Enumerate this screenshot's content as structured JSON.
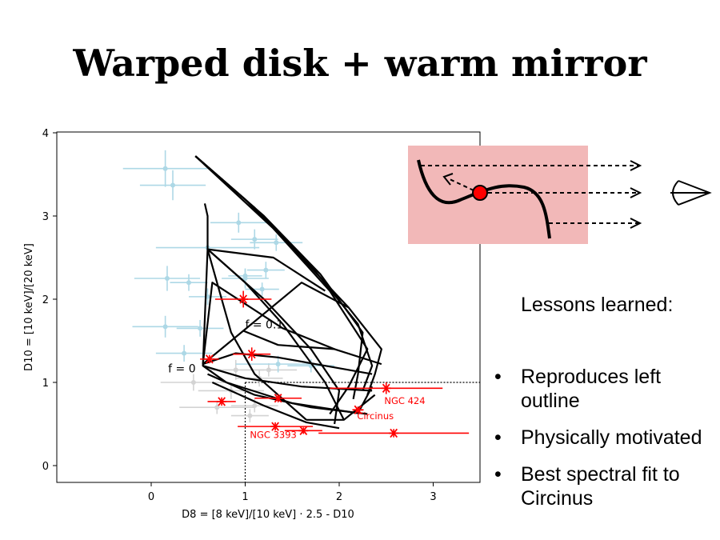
{
  "slide": {
    "title": "Warped disk + warm mirror",
    "lessons_heading": "Lessons learned:",
    "bullets": [
      "Reproduces left outline",
      "Physically motivated",
      "Best spectral fit to Circinus"
    ]
  },
  "colors": {
    "model_grid": "#000000",
    "sources": "#ff0000",
    "background_sample": "#add8e6",
    "grey_sample": "#d3d3d3",
    "inset_box": "#f2b8b8",
    "inset_dot": "#ff0000"
  },
  "chart_data": {
    "type": "scatter",
    "xlabel": "D8 = [8 keV]/[10 keV] · 2.5 - D10",
    "ylabel": "D10 = [10 keV]/[20 keV]",
    "xlim": [
      -1.0,
      3.5
    ],
    "ylim": [
      -0.2,
      4.0
    ],
    "xticks": [
      0,
      1,
      2,
      3
    ],
    "yticks": [
      0,
      1,
      2,
      3,
      4
    ],
    "reference_lines": {
      "x": 1.0,
      "y": 1.0,
      "style": "dotted"
    },
    "annotations": [
      {
        "text": "f = 0.1",
        "x": 1.0,
        "y": 1.65
      },
      {
        "text": "f = 0",
        "x": 0.18,
        "y": 1.12
      }
    ],
    "model_grid": {
      "lines": [
        [
          [
            0.57,
            3.15
          ],
          [
            0.6,
            3.0
          ],
          [
            0.6,
            2.6
          ],
          [
            0.55,
            1.2
          ],
          [
            0.8,
            1.0
          ],
          [
            1.5,
            0.75
          ],
          [
            2.2,
            0.63
          ],
          [
            2.35,
            0.95
          ]
        ],
        [
          [
            0.47,
            3.72
          ],
          [
            1.0,
            3.2
          ],
          [
            1.6,
            2.5
          ],
          [
            2.1,
            1.9
          ],
          [
            2.45,
            1.4
          ],
          [
            2.38,
            1.1
          ],
          [
            2.3,
            0.85
          ]
        ],
        [
          [
            0.47,
            3.72
          ],
          [
            1.1,
            3.1
          ],
          [
            1.7,
            2.4
          ],
          [
            2.2,
            1.7
          ],
          [
            2.35,
            1.2
          ],
          [
            2.25,
            0.9
          ]
        ],
        [
          [
            0.47,
            3.72
          ],
          [
            1.2,
            3.0
          ],
          [
            1.8,
            2.3
          ],
          [
            2.25,
            1.6
          ],
          [
            2.2,
            1.1
          ],
          [
            2.15,
            0.8
          ]
        ],
        [
          [
            0.47,
            3.72
          ],
          [
            1.3,
            2.85
          ],
          [
            1.9,
            2.1
          ],
          [
            2.3,
            1.4
          ],
          [
            2.1,
            0.95
          ],
          [
            1.9,
            0.62
          ]
        ],
        [
          [
            0.6,
            2.6
          ],
          [
            1.0,
            2.2
          ],
          [
            1.4,
            1.7
          ],
          [
            1.85,
            1.0
          ],
          [
            2.05,
            0.55
          ]
        ],
        [
          [
            0.6,
            2.6
          ],
          [
            0.85,
            1.6
          ],
          [
            1.1,
            1.1
          ],
          [
            1.65,
            0.55
          ]
        ],
        [
          [
            0.6,
            2.6
          ],
          [
            1.2,
            2.0
          ],
          [
            1.7,
            1.4
          ],
          [
            2.0,
            0.9
          ],
          [
            1.95,
            0.5
          ]
        ],
        [
          [
            0.55,
            1.22
          ],
          [
            0.9,
            1.35
          ],
          [
            1.35,
            1.3
          ],
          [
            1.85,
            1.2
          ],
          [
            2.35,
            1.1
          ]
        ],
        [
          [
            0.55,
            1.2
          ],
          [
            1.0,
            1.05
          ],
          [
            1.6,
            0.95
          ],
          [
            2.35,
            0.9
          ]
        ],
        [
          [
            0.6,
            1.1
          ],
          [
            1.1,
            0.85
          ],
          [
            1.7,
            0.7
          ],
          [
            2.3,
            0.62
          ]
        ],
        [
          [
            0.65,
            1.0
          ],
          [
            1.2,
            0.72
          ],
          [
            1.65,
            0.52
          ],
          [
            2.0,
            0.45
          ]
        ],
        [
          [
            0.55,
            1.22
          ],
          [
            0.98,
            1.62
          ],
          [
            1.35,
            1.45
          ],
          [
            1.95,
            1.4
          ],
          [
            2.45,
            1.22
          ]
        ],
        [
          [
            0.55,
            1.22
          ],
          [
            0.65,
            2.2
          ],
          [
            1.4,
            1.65
          ],
          [
            1.95,
            1.4
          ]
        ],
        [
          [
            0.98,
            1.62
          ],
          [
            1.6,
            2.2
          ],
          [
            2.1,
            1.9
          ]
        ],
        [
          [
            0.6,
            2.6
          ],
          [
            1.3,
            2.5
          ],
          [
            1.85,
            2.1
          ]
        ],
        [
          [
            1.65,
            0.55
          ],
          [
            2.05,
            0.55
          ],
          [
            2.38,
            0.85
          ]
        ]
      ]
    },
    "series": [
      {
        "style": "background-sample",
        "points": [
          {
            "x": 0.15,
            "y": 3.57,
            "xerr": 0.45,
            "yerr": 0.22
          },
          {
            "x": 0.23,
            "y": 3.37,
            "xerr": 0.35,
            "yerr": 0.18
          },
          {
            "x": 0.93,
            "y": 2.92,
            "xerr": 0.3,
            "yerr": 0.12
          },
          {
            "x": 1.1,
            "y": 2.72,
            "xerr": 0.25,
            "yerr": 0.12
          },
          {
            "x": 1.33,
            "y": 2.68,
            "xerr": 0.28,
            "yerr": 0.1
          },
          {
            "x": 0.6,
            "y": 2.62,
            "xerr": 0.55,
            "yerr": 0.15
          },
          {
            "x": 0.17,
            "y": 2.25,
            "xerr": 0.35,
            "yerr": 0.15
          },
          {
            "x": 0.4,
            "y": 2.2,
            "xerr": 0.2,
            "yerr": 0.1
          },
          {
            "x": 1.0,
            "y": 2.25,
            "xerr": 0.25,
            "yerr": 0.12
          },
          {
            "x": 1.0,
            "y": 2.28,
            "xerr": 0.18,
            "yerr": 0.08
          },
          {
            "x": 1.22,
            "y": 2.35,
            "xerr": 0.2,
            "yerr": 0.1
          },
          {
            "x": 1.18,
            "y": 2.12,
            "xerr": 0.18,
            "yerr": 0.08
          },
          {
            "x": 0.6,
            "y": 2.03,
            "xerr": 0.2,
            "yerr": 0.1
          },
          {
            "x": 0.15,
            "y": 1.67,
            "xerr": 0.35,
            "yerr": 0.13
          },
          {
            "x": 0.52,
            "y": 1.65,
            "xerr": 0.25,
            "yerr": 0.1
          },
          {
            "x": 0.35,
            "y": 1.35,
            "xerr": 0.3,
            "yerr": 0.1
          },
          {
            "x": 1.35,
            "y": 1.22,
            "xerr": 0.45,
            "yerr": 0.1
          },
          {
            "x": 1.7,
            "y": 1.2,
            "xerr": 0.25,
            "yerr": 0.08
          }
        ]
      },
      {
        "style": "grey-sample",
        "points": [
          {
            "x": 0.45,
            "y": 1.0,
            "xerr": 0.35,
            "yerr": 0.1
          },
          {
            "x": 0.9,
            "y": 1.15,
            "xerr": 0.3,
            "yerr": 0.12
          },
          {
            "x": 1.15,
            "y": 1.05,
            "xerr": 0.25,
            "yerr": 0.1
          },
          {
            "x": 0.85,
            "y": 0.9,
            "xerr": 0.35,
            "yerr": 0.1
          },
          {
            "x": 1.1,
            "y": 0.72,
            "xerr": 0.25,
            "yerr": 0.08
          },
          {
            "x": 0.7,
            "y": 0.7,
            "xerr": 0.4,
            "yerr": 0.08
          },
          {
            "x": 1.25,
            "y": 1.15,
            "xerr": 0.3,
            "yerr": 0.08
          },
          {
            "x": 1.05,
            "y": 0.6,
            "xerr": 0.2,
            "yerr": 0.08
          }
        ]
      },
      {
        "style": "observed-sources",
        "points": [
          {
            "x": 0.98,
            "y": 2.0,
            "xerr": 0.3,
            "yerr": 0.1
          },
          {
            "x": 1.07,
            "y": 1.34,
            "xerr": 0.2,
            "yerr": 0.08
          },
          {
            "x": 0.62,
            "y": 1.28,
            "xerr": 0.1,
            "yerr": 0.05
          },
          {
            "x": 0.75,
            "y": 0.77,
            "xerr": 0.15,
            "yerr": 0.05
          },
          {
            "x": 1.35,
            "y": 0.81,
            "xerr": 0.25,
            "yerr": 0.05
          },
          {
            "x": 1.32,
            "y": 0.47,
            "xerr": 0.4,
            "yerr": 0.05
          },
          {
            "x": 1.62,
            "y": 0.42,
            "xerr": 0.2,
            "yerr": 0.04
          },
          {
            "x": 2.5,
            "y": 0.93,
            "xerr": 0.6,
            "yerr": 0.07
          },
          {
            "x": 2.2,
            "y": 0.67,
            "xerr": 0.06,
            "yerr": 0.04
          },
          {
            "x": 2.58,
            "y": 0.39,
            "xerr": 0.8,
            "yerr": 0.05
          }
        ]
      }
    ],
    "source_labels": [
      {
        "text": "NGC 424",
        "x": 2.48,
        "y": 0.74
      },
      {
        "text": "Circinus",
        "x": 2.19,
        "y": 0.56
      },
      {
        "text": "NGC 3393",
        "x": 1.05,
        "y": 0.33
      }
    ]
  }
}
